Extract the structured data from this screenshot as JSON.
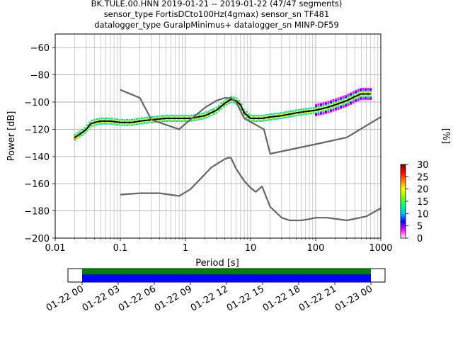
{
  "chart_data": {
    "type": "line",
    "title_lines": [
      "BK.TULE.00.HNN   2019-01-21 -- 2019-01-22  (47/47 segments)",
      "sensor_type FortisDCto100Hz(4gmax) sensor_sn TF481",
      "datalogger_type GuralpMinimus+ datalogger_sn MINP-DF59"
    ],
    "xlabel": "Period [s]",
    "ylabel": "Power [dB]",
    "xscale": "log",
    "xlim": [
      0.01,
      1000
    ],
    "ylim": [
      -200,
      -50
    ],
    "xticks": [
      {
        "value": 0.01,
        "label": "0.01"
      },
      {
        "value": 0.1,
        "label": "0.1"
      },
      {
        "value": 1,
        "label": "1"
      },
      {
        "value": 10,
        "label": "10"
      },
      {
        "value": 100,
        "label": "100"
      },
      {
        "value": 1000,
        "label": "1000"
      }
    ],
    "yticks": [
      -200,
      -180,
      -160,
      -140,
      -120,
      -100,
      -80,
      -60
    ],
    "grid": true,
    "colorbar": {
      "label": "[%]",
      "min": 0,
      "max": 30,
      "ticks": [
        0,
        5,
        10,
        15,
        20,
        25,
        30
      ],
      "colors": [
        "#ffffff",
        "#ff00ff",
        "#0000ff",
        "#00c0ff",
        "#00ff80",
        "#80ff00",
        "#ffff00",
        "#ff8000",
        "#ff0000",
        "#800000"
      ]
    },
    "series": [
      {
        "color": "#000000",
        "x": [
          0.02,
          0.025,
          0.03,
          0.035,
          0.04,
          0.05,
          0.07,
          0.1,
          0.15,
          0.2,
          0.3,
          0.5,
          0.8,
          1.2,
          2,
          3,
          4,
          5,
          6,
          7,
          8,
          10,
          15,
          20,
          30,
          50,
          70,
          100,
          150,
          200,
          300,
          400,
          500,
          700
        ],
        "y": [
          -126,
          -123,
          -120,
          -116,
          -115,
          -114,
          -114,
          -115,
          -115,
          -114,
          -113,
          -112,
          -112,
          -112,
          -110,
          -106,
          -101,
          -98,
          -99,
          -102,
          -108,
          -112,
          -112,
          -111,
          -110,
          -108,
          -107,
          -106,
          -104,
          -102,
          -99,
          -96,
          -94,
          -94
        ]
      },
      {
        "color": "#666666",
        "x": [
          0.1,
          0.2,
          0.3,
          0.8,
          1,
          2,
          3,
          4,
          5,
          6,
          8,
          16,
          20,
          100,
          300,
          1000
        ],
        "y": [
          -91,
          -97,
          -113,
          -120,
          -116,
          -104,
          -99,
          -97,
          -97,
          -100,
          -112,
          -120,
          -138,
          -131,
          -126,
          -111
        ]
      },
      {
        "color": "#666666",
        "x": [
          0.1,
          0.2,
          0.4,
          0.8,
          1.2,
          2.5,
          4,
          4.5,
          5,
          6,
          8,
          10,
          12,
          15,
          20,
          30,
          40,
          60,
          80,
          100,
          150,
          300,
          600,
          1000
        ],
        "y": [
          -168,
          -167,
          -167,
          -169,
          -164,
          -148,
          -142,
          -141,
          -141,
          -149,
          -158,
          -163,
          -166,
          -162,
          -177,
          -185,
          -187,
          -187,
          -186,
          -185,
          -185,
          -187,
          -184,
          -178
        ]
      }
    ],
    "timeline": {
      "ticks": [
        "01-22 00",
        "01-22 03",
        "01-22 06",
        "01-22 09",
        "01-22 12",
        "01-22 15",
        "01-22 18",
        "01-22 21",
        "01-23 00"
      ],
      "bar_colors": [
        "#008000",
        "#0000ff"
      ]
    }
  }
}
